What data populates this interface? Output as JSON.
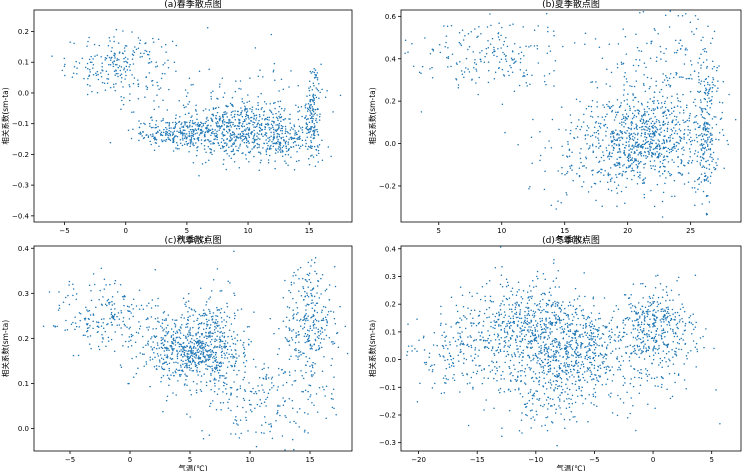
{
  "chart_data": [
    {
      "type": "scatter",
      "title": "(a)春季散点图",
      "xlabel": "气温(℃)",
      "ylabel": "相关系数(sm-ta)",
      "xlim": [
        -7.5,
        18.5
      ],
      "ylim": [
        -0.42,
        0.27
      ],
      "xticks": [
        -5,
        0,
        5,
        10,
        15
      ],
      "yticks": [
        -0.4,
        -0.3,
        -0.2,
        -0.1,
        0.0,
        0.1,
        0.2
      ],
      "xtick_labels": [
        "−5",
        "0",
        "5",
        "10",
        "15"
      ],
      "ytick_labels": [
        "−0.4",
        "−0.3",
        "−0.2",
        "−0.1",
        "0.0",
        "0.1",
        "0.2"
      ],
      "marker_color": "#1f77b4",
      "clusters": [
        {
          "cx": -0.5,
          "cy": 0.09,
          "sx": 2.2,
          "sy": 0.05,
          "n": 230
        },
        {
          "cx": 4.5,
          "cy": -0.13,
          "sx": 2.0,
          "sy": 0.025,
          "n": 260
        },
        {
          "cx": 9.0,
          "cy": -0.12,
          "sx": 2.3,
          "sy": 0.05,
          "n": 520
        },
        {
          "cx": 13.0,
          "cy": -0.14,
          "sx": 1.0,
          "sy": 0.04,
          "n": 160
        },
        {
          "cx": 15.3,
          "cy": -0.08,
          "sx": 0.35,
          "sy": 0.07,
          "n": 160
        },
        {
          "cx": 10.5,
          "cy": -0.05,
          "sx": 3.5,
          "sy": 0.08,
          "n": 120
        }
      ]
    },
    {
      "type": "scatter",
      "title": "(b)夏季散点图",
      "xlabel": "气温(℃)",
      "ylabel": "相关系数(sm-ta)",
      "xlim": [
        2,
        29
      ],
      "ylim": [
        -0.37,
        0.63
      ],
      "xticks": [
        5,
        10,
        15,
        20,
        25
      ],
      "yticks": [
        -0.2,
        0.0,
        0.2,
        0.4,
        0.6
      ],
      "xtick_labels": [
        "5",
        "10",
        "15",
        "20",
        "25"
      ],
      "ytick_labels": [
        "−0.2",
        "0.0",
        "0.2",
        "0.4",
        "0.6"
      ],
      "marker_color": "#1f77b4",
      "clusters": [
        {
          "cx": 9.0,
          "cy": 0.42,
          "sx": 3.0,
          "sy": 0.09,
          "n": 200
        },
        {
          "cx": 21.0,
          "cy": 0.02,
          "sx": 2.6,
          "sy": 0.1,
          "n": 750
        },
        {
          "cx": 23.0,
          "cy": 0.3,
          "sx": 3.0,
          "sy": 0.16,
          "n": 200
        },
        {
          "cx": 26.2,
          "cy": 0.05,
          "sx": 0.4,
          "sy": 0.2,
          "n": 220
        },
        {
          "cx": 18.0,
          "cy": -0.1,
          "sx": 3.0,
          "sy": 0.1,
          "n": 130
        }
      ]
    },
    {
      "type": "scatter",
      "title": "(c)秋季散点图",
      "xlabel": "气温(℃)",
      "ylabel": "相关系数(sm-ta)",
      "xlim": [
        -8,
        18.5
      ],
      "ylim": [
        -0.05,
        0.405
      ],
      "xticks": [
        -5,
        0,
        5,
        10,
        15
      ],
      "yticks": [
        0.0,
        0.1,
        0.2,
        0.3,
        0.4
      ],
      "xtick_labels": [
        "−5",
        "0",
        "5",
        "10",
        "15"
      ],
      "ytick_labels": [
        "0.0",
        "0.1",
        "0.2",
        "0.3",
        "0.4"
      ],
      "marker_color": "#1f77b4",
      "clusters": [
        {
          "cx": -2.0,
          "cy": 0.25,
          "sx": 2.2,
          "sy": 0.04,
          "n": 200
        },
        {
          "cx": 5.0,
          "cy": 0.17,
          "sx": 2.2,
          "sy": 0.04,
          "n": 650
        },
        {
          "cx": 7.0,
          "cy": 0.23,
          "sx": 1.2,
          "sy": 0.05,
          "n": 140
        },
        {
          "cx": 11.0,
          "cy": 0.07,
          "sx": 2.8,
          "sy": 0.05,
          "n": 200
        },
        {
          "cx": 15.0,
          "cy": 0.23,
          "sx": 1.1,
          "sy": 0.07,
          "n": 280
        }
      ]
    },
    {
      "type": "scatter",
      "title": "(d)冬季散点图",
      "xlabel": "气温(℃)",
      "ylabel": "相关系数(sm-ta)",
      "xlim": [
        -21.5,
        7.5
      ],
      "ylim": [
        -0.33,
        0.41
      ],
      "xticks": [
        -20,
        -15,
        -10,
        -5,
        0,
        5
      ],
      "yticks": [
        -0.3,
        -0.2,
        -0.1,
        0.0,
        0.1,
        0.2,
        0.3,
        0.4
      ],
      "xtick_labels": [
        "−20",
        "−15",
        "−10",
        "−5",
        "0",
        "5"
      ],
      "ytick_labels": [
        "−0.3",
        "−0.2",
        "−0.1",
        "0.0",
        "0.1",
        "0.2",
        "0.3",
        "0.4"
      ],
      "marker_color": "#1f77b4",
      "clusters": [
        {
          "cx": -16.0,
          "cy": 0.03,
          "sx": 2.5,
          "sy": 0.08,
          "n": 220
        },
        {
          "cx": -11.0,
          "cy": 0.12,
          "sx": 2.2,
          "sy": 0.09,
          "n": 450
        },
        {
          "cx": -7.0,
          "cy": 0.05,
          "sx": 2.2,
          "sy": 0.08,
          "n": 450
        },
        {
          "cx": -9.0,
          "cy": -0.1,
          "sx": 2.5,
          "sy": 0.08,
          "n": 220
        },
        {
          "cx": 0.5,
          "cy": 0.12,
          "sx": 1.6,
          "sy": 0.07,
          "n": 360
        },
        {
          "cx": -3.0,
          "cy": 0.0,
          "sx": 3.0,
          "sy": 0.1,
          "n": 200
        }
      ]
    }
  ]
}
